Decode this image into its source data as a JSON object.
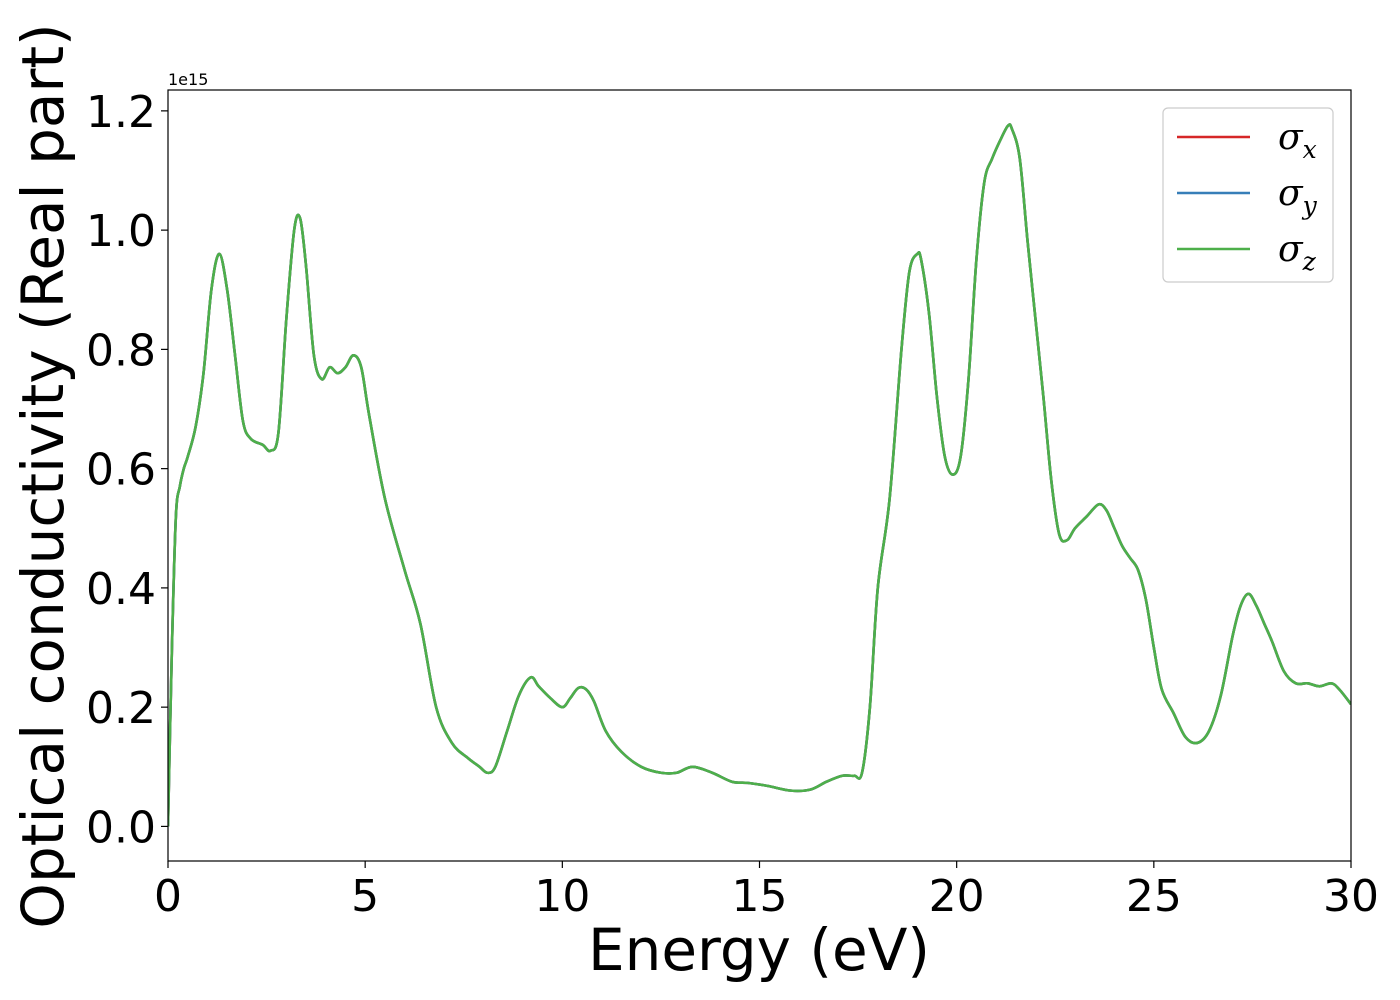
{
  "chart_data": {
    "type": "line",
    "xlabel": "Energy (eV)",
    "ylabel": "Optical conductivity (Real part)",
    "y_offset_label": "1e15",
    "xlim": [
      0,
      30
    ],
    "ylim": [
      -0.058,
      1.235
    ],
    "y_scale": 1000000000000000.0,
    "grid": false,
    "legend_position": "top-right",
    "x_ticks": [
      0,
      5,
      10,
      15,
      20,
      25,
      30
    ],
    "x_tick_labels": [
      "0",
      "5",
      "10",
      "15",
      "20",
      "25",
      "30"
    ],
    "y_ticks": [
      0.0,
      0.2,
      0.4,
      0.6,
      0.8,
      1.0,
      1.2
    ],
    "y_tick_labels": [
      "0.0",
      "0.2",
      "0.4",
      "0.6",
      "0.8",
      "1.0",
      "1.2"
    ],
    "x": [
      0.0,
      0.1,
      0.2,
      0.3,
      0.4,
      0.5,
      0.7,
      0.9,
      1.1,
      1.3,
      1.5,
      1.7,
      1.9,
      2.1,
      2.4,
      2.6,
      2.8,
      3.0,
      3.2,
      3.35,
      3.5,
      3.7,
      3.9,
      4.1,
      4.3,
      4.5,
      4.7,
      4.9,
      5.1,
      5.5,
      6.0,
      6.4,
      6.8,
      7.2,
      7.6,
      7.9,
      8.1,
      8.3,
      8.6,
      8.9,
      9.2,
      9.4,
      9.7,
      10.0,
      10.2,
      10.4,
      10.6,
      10.8,
      11.1,
      11.5,
      12.0,
      12.5,
      12.9,
      13.3,
      13.8,
      14.3,
      14.7,
      15.2,
      15.8,
      16.3,
      16.7,
      17.1,
      17.4,
      17.6,
      17.8,
      18.0,
      18.3,
      18.6,
      18.8,
      19.0,
      19.1,
      19.3,
      19.5,
      19.7,
      19.9,
      20.1,
      20.3,
      20.5,
      20.7,
      20.9,
      21.1,
      21.3,
      21.4,
      21.6,
      21.8,
      22.0,
      22.2,
      22.4,
      22.6,
      22.8,
      23.0,
      23.3,
      23.6,
      23.8,
      24.0,
      24.2,
      24.4,
      24.6,
      24.8,
      25.0,
      25.2,
      25.5,
      25.8,
      26.1,
      26.4,
      26.7,
      27.0,
      27.2,
      27.4,
      27.6,
      27.8,
      28.0,
      28.3,
      28.6,
      28.9,
      29.2,
      29.5,
      29.7,
      30.0
    ],
    "series": [
      {
        "name": "σ_x",
        "label_base": "σ",
        "label_sub": "x",
        "color": "#d62728",
        "values": [
          0.0,
          0.3,
          0.52,
          0.57,
          0.6,
          0.62,
          0.67,
          0.76,
          0.9,
          0.96,
          0.9,
          0.79,
          0.68,
          0.65,
          0.64,
          0.63,
          0.66,
          0.85,
          1.0,
          1.02,
          0.94,
          0.79,
          0.75,
          0.77,
          0.76,
          0.77,
          0.79,
          0.77,
          0.69,
          0.55,
          0.43,
          0.34,
          0.2,
          0.14,
          0.115,
          0.1,
          0.09,
          0.1,
          0.16,
          0.22,
          0.25,
          0.235,
          0.215,
          0.2,
          0.215,
          0.232,
          0.23,
          0.21,
          0.16,
          0.125,
          0.1,
          0.09,
          0.09,
          0.1,
          0.09,
          0.075,
          0.073,
          0.068,
          0.06,
          0.062,
          0.075,
          0.085,
          0.085,
          0.09,
          0.2,
          0.4,
          0.55,
          0.8,
          0.93,
          0.96,
          0.95,
          0.86,
          0.72,
          0.62,
          0.59,
          0.62,
          0.75,
          0.95,
          1.08,
          1.12,
          1.15,
          1.175,
          1.17,
          1.12,
          0.98,
          0.85,
          0.72,
          0.58,
          0.49,
          0.48,
          0.5,
          0.52,
          0.54,
          0.53,
          0.5,
          0.47,
          0.45,
          0.43,
          0.38,
          0.3,
          0.23,
          0.19,
          0.15,
          0.14,
          0.16,
          0.22,
          0.32,
          0.37,
          0.39,
          0.37,
          0.34,
          0.31,
          0.26,
          0.24,
          0.24,
          0.235,
          0.24,
          0.23,
          0.205
        ]
      },
      {
        "name": "σ_y",
        "label_base": "σ",
        "label_sub": "y",
        "color": "#377eb8",
        "values": [
          0.0,
          0.3,
          0.52,
          0.57,
          0.6,
          0.62,
          0.67,
          0.76,
          0.9,
          0.96,
          0.9,
          0.79,
          0.68,
          0.65,
          0.64,
          0.63,
          0.66,
          0.85,
          1.0,
          1.02,
          0.94,
          0.79,
          0.75,
          0.77,
          0.76,
          0.77,
          0.79,
          0.77,
          0.69,
          0.55,
          0.43,
          0.34,
          0.2,
          0.14,
          0.115,
          0.1,
          0.09,
          0.1,
          0.16,
          0.22,
          0.25,
          0.235,
          0.215,
          0.2,
          0.215,
          0.232,
          0.23,
          0.21,
          0.16,
          0.125,
          0.1,
          0.09,
          0.09,
          0.1,
          0.09,
          0.075,
          0.073,
          0.068,
          0.06,
          0.062,
          0.075,
          0.085,
          0.085,
          0.09,
          0.2,
          0.4,
          0.55,
          0.8,
          0.93,
          0.96,
          0.95,
          0.86,
          0.72,
          0.62,
          0.59,
          0.62,
          0.75,
          0.95,
          1.08,
          1.12,
          1.15,
          1.175,
          1.17,
          1.12,
          0.98,
          0.85,
          0.72,
          0.58,
          0.49,
          0.48,
          0.5,
          0.52,
          0.54,
          0.53,
          0.5,
          0.47,
          0.45,
          0.43,
          0.38,
          0.3,
          0.23,
          0.19,
          0.15,
          0.14,
          0.16,
          0.22,
          0.32,
          0.37,
          0.39,
          0.37,
          0.34,
          0.31,
          0.26,
          0.24,
          0.24,
          0.235,
          0.24,
          0.23,
          0.205
        ]
      },
      {
        "name": "σ_z",
        "label_base": "σ",
        "label_sub": "z",
        "color": "#4daf4a",
        "values": [
          0.0,
          0.3,
          0.52,
          0.57,
          0.6,
          0.62,
          0.67,
          0.76,
          0.9,
          0.96,
          0.9,
          0.79,
          0.68,
          0.65,
          0.64,
          0.63,
          0.66,
          0.85,
          1.0,
          1.02,
          0.94,
          0.79,
          0.75,
          0.77,
          0.76,
          0.77,
          0.79,
          0.77,
          0.69,
          0.55,
          0.43,
          0.34,
          0.2,
          0.14,
          0.115,
          0.1,
          0.09,
          0.1,
          0.16,
          0.22,
          0.25,
          0.235,
          0.215,
          0.2,
          0.215,
          0.232,
          0.23,
          0.21,
          0.16,
          0.125,
          0.1,
          0.09,
          0.09,
          0.1,
          0.09,
          0.075,
          0.073,
          0.068,
          0.06,
          0.062,
          0.075,
          0.085,
          0.085,
          0.09,
          0.2,
          0.4,
          0.55,
          0.8,
          0.93,
          0.96,
          0.95,
          0.86,
          0.72,
          0.62,
          0.59,
          0.62,
          0.75,
          0.95,
          1.08,
          1.12,
          1.15,
          1.175,
          1.17,
          1.12,
          0.98,
          0.85,
          0.72,
          0.58,
          0.49,
          0.48,
          0.5,
          0.52,
          0.54,
          0.53,
          0.5,
          0.47,
          0.45,
          0.43,
          0.38,
          0.3,
          0.23,
          0.19,
          0.15,
          0.14,
          0.16,
          0.22,
          0.32,
          0.37,
          0.39,
          0.37,
          0.34,
          0.31,
          0.26,
          0.24,
          0.24,
          0.235,
          0.24,
          0.23,
          0.205
        ]
      }
    ]
  }
}
